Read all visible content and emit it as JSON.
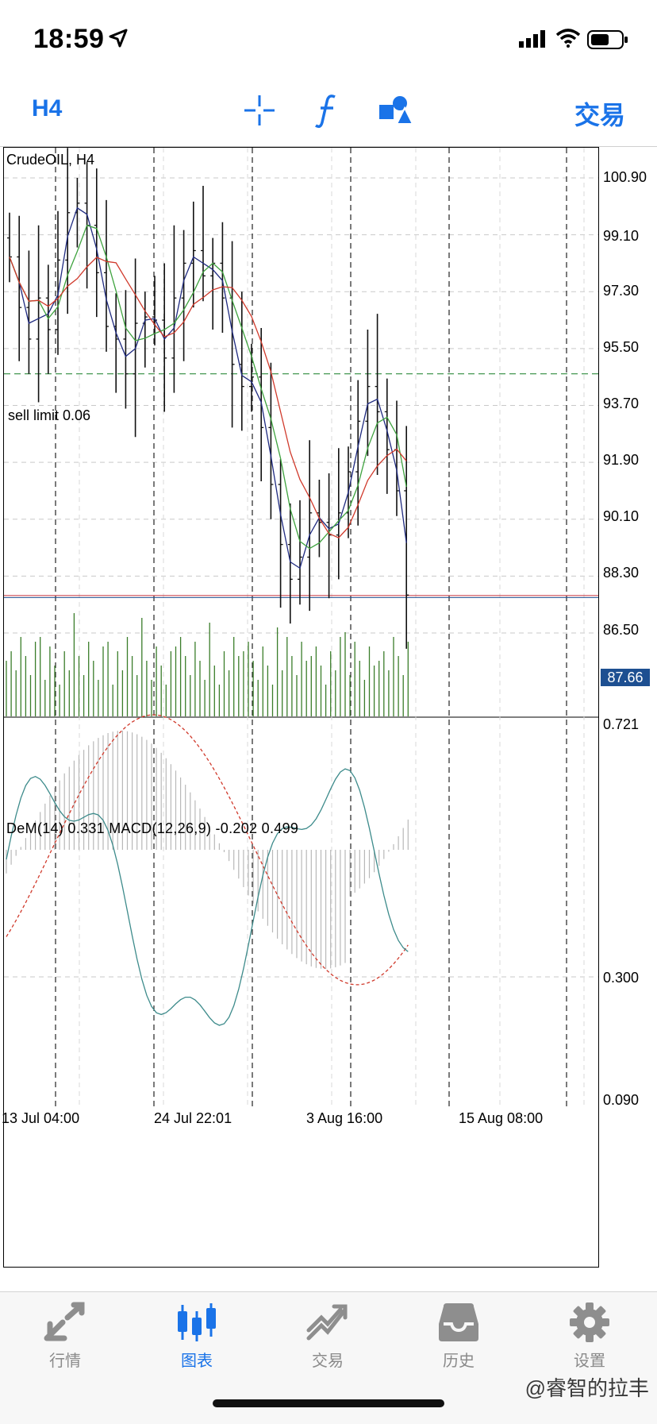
{
  "status": {
    "time": "18:59"
  },
  "toolbar": {
    "timeframe": "H4",
    "icons": [
      "crosshair-icon",
      "function-icon",
      "objects-icon"
    ],
    "trade_label": "交易",
    "accent": "#1a73e8"
  },
  "chart": {
    "symbol_label": "CrudeOIL, H4",
    "pending_order_label": "sell limit 0.06",
    "current_price": "87.66",
    "indicator_label": "DeM(14) 0.331 MACD(12,26,9) -0.202 0.499",
    "price_axis": [
      "100.90",
      "99.10",
      "97.30",
      "95.50",
      "93.70",
      "91.90",
      "90.10",
      "88.30",
      "86.50"
    ],
    "indicator_axis": [
      "0.721",
      "0.300",
      "0.090"
    ],
    "time_axis": [
      "13 Jul 04:00",
      "24 Jul 22:01",
      "3 Aug 16:00",
      "15 Aug 08:00"
    ],
    "colors": {
      "price_tag": "#1d4f91",
      "ma_fast": "#1f2a80",
      "ma_mid": "#3fa33f",
      "ma_slow": "#d0392b",
      "volume": "#3a7d2a",
      "demarker": "#3d8b8b",
      "macd_signal": "#d0392b"
    }
  },
  "chart_data": {
    "type": "line",
    "title": "CrudeOIL, H4",
    "ylim": [
      86.5,
      100.9
    ],
    "close": [
      98.4,
      96.8,
      95.8,
      97.1,
      96.1,
      98.3,
      99.8,
      100.1,
      99.4,
      97.9,
      96.2,
      95.8,
      94.7,
      96.3,
      96.5,
      96.4,
      95.2,
      97.1,
      98.2,
      98.6,
      97.8,
      98.2,
      97.1,
      95.0,
      94.3,
      94.6,
      93.0,
      91.2,
      89.3,
      88.2,
      88.9,
      90.3,
      90.0,
      89.6,
      90.3,
      91.6,
      93.2,
      94.3,
      93.5,
      92.3,
      91.0,
      87.7
    ],
    "indicator": {
      "name": "DeM(14) / MACD(12,26,9)",
      "demarker_last": 0.331,
      "macd_main": -0.202,
      "macd_signal": 0.499,
      "ylim": [
        0.09,
        0.721
      ]
    }
  },
  "tabbar": {
    "tabs": [
      {
        "label": "行情",
        "icon": "quotes-icon",
        "active": false
      },
      {
        "label": "图表",
        "icon": "candlestick-chart-icon",
        "active": true
      },
      {
        "label": "交易",
        "icon": "trade-icon",
        "active": false
      },
      {
        "label": "历史",
        "icon": "history-icon",
        "active": false
      },
      {
        "label": "设置",
        "icon": "settings-gear-icon",
        "active": false
      }
    ]
  },
  "watermark": "@睿智的拉丰"
}
